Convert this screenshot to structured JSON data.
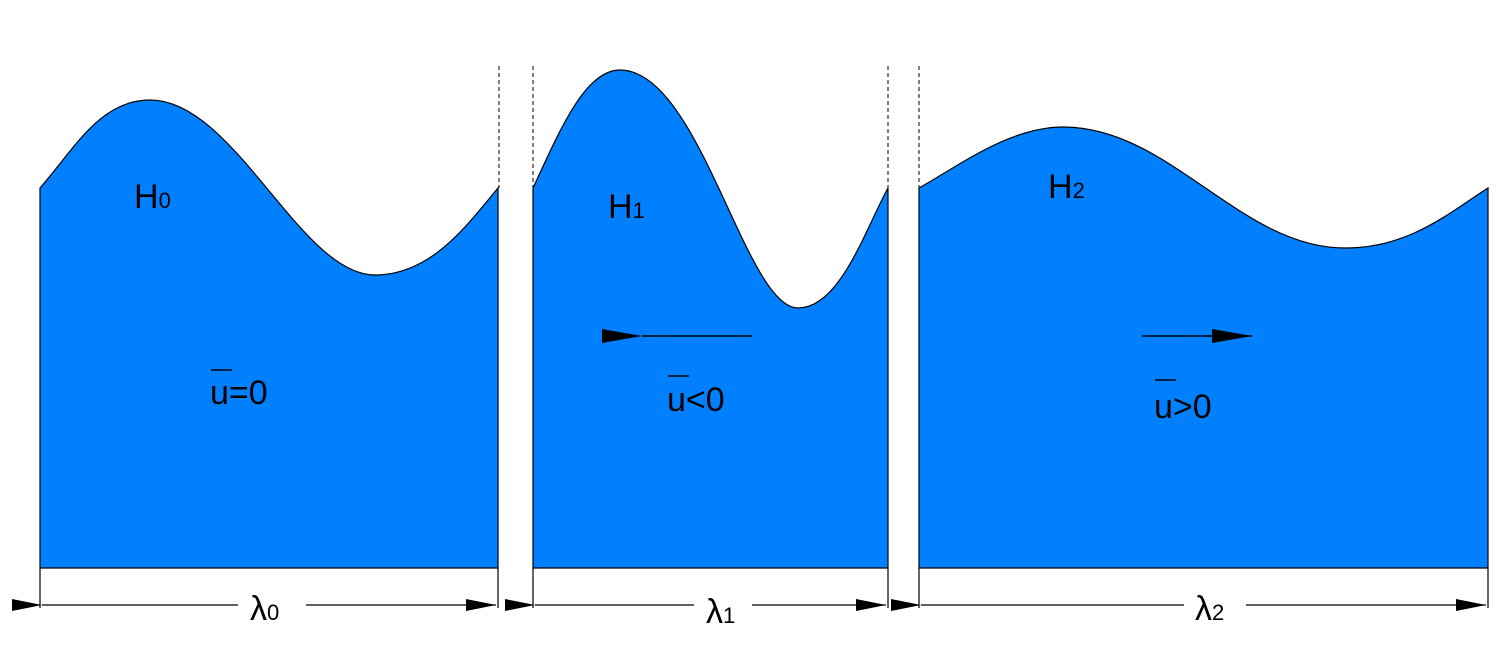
{
  "colors": {
    "water": "#0080ff",
    "line": "#000000",
    "background": "#ffffff"
  },
  "panels": [
    {
      "height_label": {
        "base": "H",
        "sub": "0"
      },
      "velocity_label": {
        "base": "u",
        "rel": "=0"
      },
      "flow_direction": "none",
      "wavelength_label": {
        "base": "λ",
        "sub": "0"
      }
    },
    {
      "height_label": {
        "base": "H",
        "sub": "1"
      },
      "velocity_label": {
        "base": "u",
        "rel": "<0"
      },
      "flow_direction": "left",
      "wavelength_label": {
        "base": "λ",
        "sub": "1"
      }
    },
    {
      "height_label": {
        "base": "H",
        "sub": "2"
      },
      "velocity_label": {
        "base": "u",
        "rel": ">0"
      },
      "flow_direction": "right",
      "wavelength_label": {
        "base": "λ",
        "sub": "2"
      }
    }
  ]
}
